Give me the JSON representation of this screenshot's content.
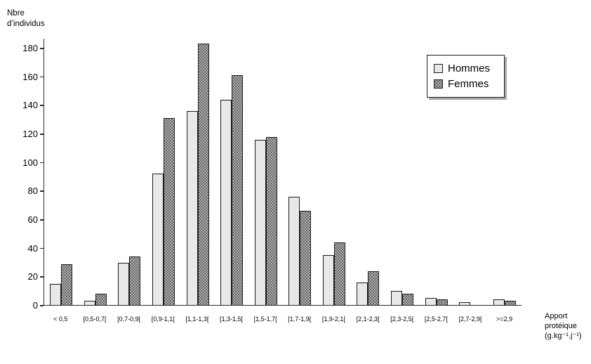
{
  "chart_data": {
    "type": "bar",
    "title": "",
    "ylabel": "Nbre d’individus",
    "ylabel_lines": [
      "Nbre",
      "d’individus"
    ],
    "xlabel": "Apport protéique (g.kg⁻¹.j⁻¹)",
    "xlabel_lines": [
      "Apport",
      "protéique",
      "(g.kg⁻¹.j⁻¹)"
    ],
    "categories": [
      "< 0,5",
      "[0,5-0,7[",
      "[0,7-0,9[",
      "[0,9-1,1[",
      "[1,1-1,3[",
      "[1,3-1,5[",
      "[1,5-1,7[",
      "[1,7-1,9[",
      "[1,9-2,1[",
      "[2,1-2,3[",
      "[2,3-2,5[",
      "[2,5-2,7[",
      "[2,7-2,9[",
      ">=2,9"
    ],
    "series": [
      {
        "name": "Hommes",
        "color": "#e8e8e8",
        "pattern": "solid",
        "values": [
          14,
          2,
          29,
          91,
          135,
          143,
          115,
          75,
          34,
          15,
          9,
          4,
          1,
          3
        ]
      },
      {
        "name": "Femmes",
        "color": "#8a8a8a",
        "pattern": "checker",
        "values": [
          28,
          7,
          33,
          130,
          182,
          160,
          117,
          65,
          43,
          23,
          7,
          3,
          0,
          2
        ]
      }
    ],
    "ylim": [
      0,
      180
    ],
    "yticks": [
      0,
      20,
      40,
      60,
      80,
      100,
      120,
      140,
      160,
      180
    ],
    "grid": false,
    "legend_position": "top-right"
  }
}
